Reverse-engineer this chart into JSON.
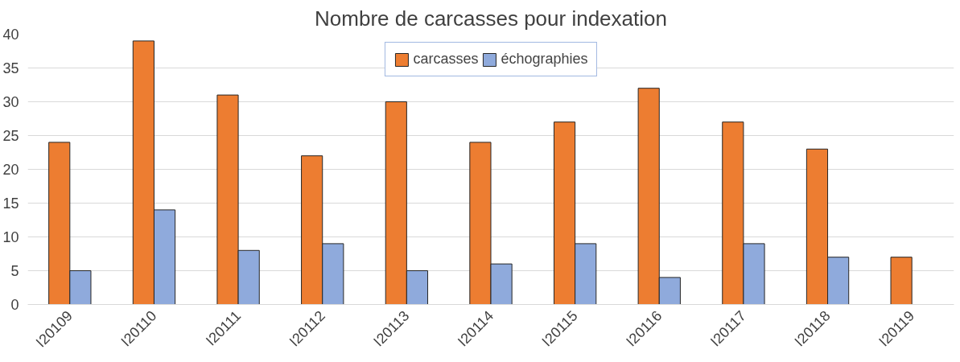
{
  "chart_data": {
    "type": "bar",
    "title": "Nombre de carcasses pour indexation",
    "categories": [
      "I20109",
      "I20110",
      "I20111",
      "I20112",
      "I20113",
      "I20114",
      "I20115",
      "I20116",
      "I20117",
      "I20118",
      "I20119"
    ],
    "series": [
      {
        "name": "carcasses",
        "color": "#ed7d31",
        "values": [
          24,
          39,
          31,
          22,
          30,
          24,
          27,
          32,
          27,
          23,
          7
        ]
      },
      {
        "name": "échographies",
        "color": "#8faadc",
        "values": [
          5,
          14,
          8,
          9,
          5,
          6,
          9,
          4,
          9,
          7,
          null
        ]
      }
    ],
    "ylim": [
      0,
      40
    ],
    "yticks": [
      0,
      5,
      10,
      15,
      20,
      25,
      30,
      35,
      40
    ],
    "grid": "y",
    "legend": "top"
  }
}
